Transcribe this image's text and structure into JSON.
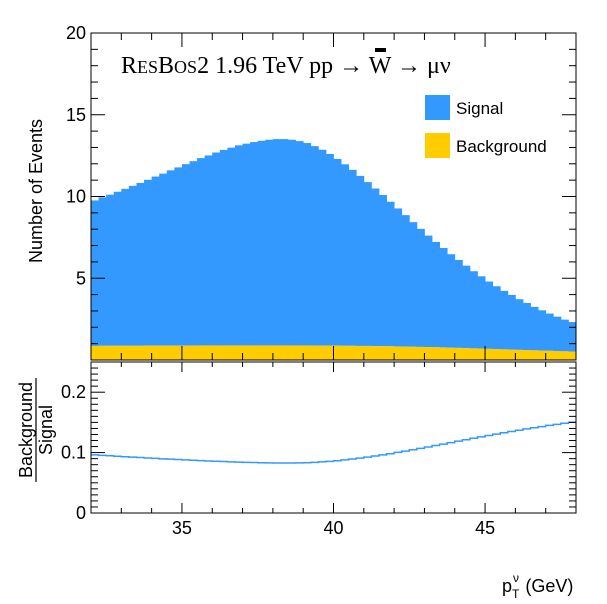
{
  "chart_data": [
    {
      "type": "histogram",
      "panel": "main",
      "title": {
        "r": "R",
        "esb": "ES",
        "b": "B",
        "os": "OS",
        "rest": "2 1.96 TeV p",
        "pbar": "p",
        "process": " → W → μν"
      },
      "ylabel": "Number of Events",
      "xlim": [
        32,
        48
      ],
      "ylim": [
        0,
        20
      ],
      "y_ticks": [
        "5",
        "10",
        "15",
        "20"
      ],
      "y_tick_values": [
        5,
        10,
        15,
        20
      ],
      "bin_width": 0.25,
      "bin_start": 32,
      "legend_position": "top-right",
      "series": [
        {
          "name": "Signal",
          "color": "#3399ff",
          "values": [
            8.9,
            9.08,
            9.24,
            9.42,
            9.6,
            9.78,
            9.96,
            10.14,
            10.34,
            10.52,
            10.72,
            10.9,
            11.1,
            11.28,
            11.46,
            11.62,
            11.8,
            11.96,
            12.1,
            12.24,
            12.34,
            12.44,
            12.52,
            12.58,
            12.62,
            12.62,
            12.58,
            12.5,
            12.38,
            12.2,
            11.98,
            11.72,
            11.42,
            11.1,
            10.76,
            10.4,
            10.02,
            9.64,
            9.24,
            8.84,
            8.44,
            8.04,
            7.62,
            7.22,
            6.82,
            6.44,
            6.08,
            5.72,
            5.38,
            5.04,
            4.72,
            4.42,
            4.12,
            3.84,
            3.58,
            3.34,
            3.1,
            2.88,
            2.66,
            2.46,
            2.28,
            2.1,
            1.94,
            1.8
          ]
        },
        {
          "name": "Background",
          "color": "#ffcc00",
          "values": [
            0.86,
            0.87,
            0.87,
            0.87,
            0.87,
            0.87,
            0.87,
            0.88,
            0.88,
            0.88,
            0.88,
            0.88,
            0.88,
            0.88,
            0.89,
            0.89,
            0.89,
            0.89,
            0.89,
            0.89,
            0.89,
            0.89,
            0.89,
            0.89,
            0.89,
            0.89,
            0.89,
            0.89,
            0.89,
            0.88,
            0.88,
            0.88,
            0.88,
            0.87,
            0.87,
            0.86,
            0.86,
            0.85,
            0.85,
            0.84,
            0.83,
            0.82,
            0.81,
            0.8,
            0.79,
            0.78,
            0.77,
            0.75,
            0.74,
            0.73,
            0.71,
            0.7,
            0.68,
            0.67,
            0.65,
            0.64,
            0.62,
            0.61,
            0.59,
            0.58,
            0.56,
            0.55,
            0.53,
            0.52
          ]
        }
      ]
    },
    {
      "type": "step",
      "panel": "ratio",
      "ylabel_top": "Background",
      "ylabel_bottom": "Signal",
      "xlabel_base": "p",
      "xlabel_sup": "ν",
      "xlabel_sub": "T",
      "xlabel_unit": " (GeV)",
      "xlim": [
        32,
        48
      ],
      "ylim": [
        0,
        0.25
      ],
      "x_ticks": [
        "35",
        "40",
        "45"
      ],
      "x_tick_values": [
        35,
        40,
        45
      ],
      "y_ticks": [
        "0",
        "0.1",
        "0.2"
      ],
      "y_tick_values": [
        0,
        0.1,
        0.2
      ],
      "bin_width": 0.25,
      "bin_start": 32,
      "color": "#3399ff",
      "values": [
        0.0963,
        0.0955,
        0.0948,
        0.094,
        0.0932,
        0.0925,
        0.0918,
        0.0911,
        0.0904,
        0.0897,
        0.0891,
        0.0885,
        0.0879,
        0.0873,
        0.0867,
        0.0862,
        0.0857,
        0.0852,
        0.0847,
        0.0843,
        0.0839,
        0.0836,
        0.0833,
        0.083,
        0.0828,
        0.0827,
        0.0827,
        0.0829,
        0.0833,
        0.0839,
        0.0846,
        0.0855,
        0.0866,
        0.0879,
        0.0893,
        0.0908,
        0.0925,
        0.0943,
        0.0962,
        0.0982,
        0.1003,
        0.1025,
        0.1047,
        0.107,
        0.1093,
        0.1117,
        0.1141,
        0.1165,
        0.1189,
        0.1213,
        0.1237,
        0.126,
        0.1283,
        0.1306,
        0.1328,
        0.135,
        0.1371,
        0.1392,
        0.1412,
        0.1431,
        0.145,
        0.1468,
        0.1486,
        0.1503
      ]
    }
  ]
}
